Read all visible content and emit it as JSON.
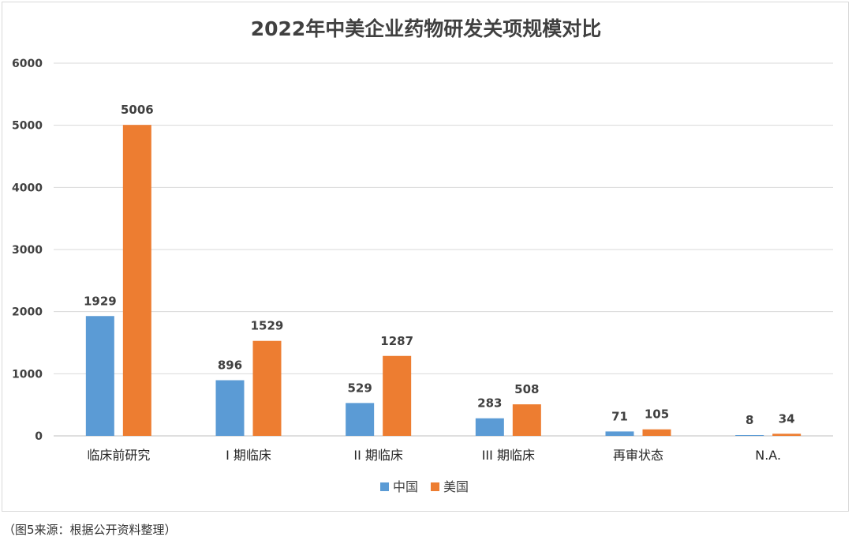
{
  "chart_data": {
    "type": "bar",
    "title": "2022年中美企业药物研发关项规模对比",
    "categories": [
      "临床前研究",
      "I 期临床",
      "II 期临床",
      "III 期临床",
      "再审状态",
      "N.A."
    ],
    "series": [
      {
        "name": "中国",
        "color": "#5b9bd5",
        "values": [
          1929,
          896,
          529,
          283,
          71,
          8
        ]
      },
      {
        "name": "美国",
        "color": "#ed7d31",
        "values": [
          5006,
          1529,
          1287,
          508,
          105,
          34
        ]
      }
    ],
    "ylim": [
      0,
      6000
    ],
    "yticks": [
      0,
      1000,
      2000,
      3000,
      4000,
      5000,
      6000
    ],
    "grid": true,
    "legend_position": "bottom-center",
    "xlabel": "",
    "ylabel": ""
  },
  "source_note": "（图5来源：根据公开资料整理）"
}
